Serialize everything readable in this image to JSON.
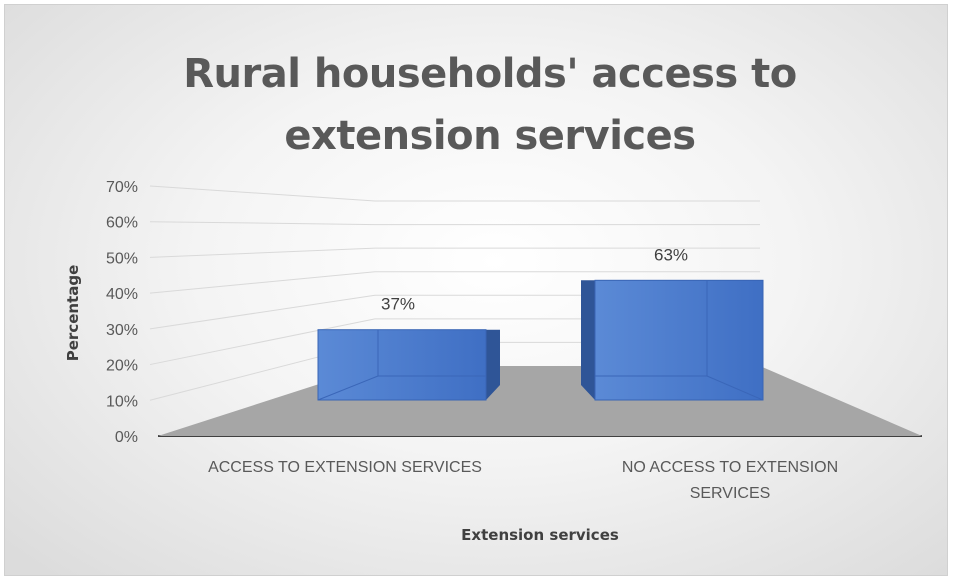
{
  "chart_data": {
    "type": "bar",
    "title": "Rural households' access to extension services",
    "xlabel": "Extension services",
    "ylabel": "Percentage",
    "categories": [
      "ACCESS TO EXTENSION SERVICES",
      "NO ACCESS TO EXTENSION SERVICES"
    ],
    "values": [
      37,
      63
    ],
    "data_labels": [
      "37%",
      "63%"
    ],
    "ylim": [
      0,
      70
    ],
    "yticks": [
      "0%",
      "10%",
      "20%",
      "30%",
      "40%",
      "50%",
      "60%",
      "70%"
    ],
    "grid": true,
    "legend": "none",
    "style": "3d-clustered-column",
    "colors": {
      "bar": "#4472c4",
      "floor": "#a6a6a6",
      "grid": "#d9d9d9",
      "text": "#595959"
    }
  }
}
